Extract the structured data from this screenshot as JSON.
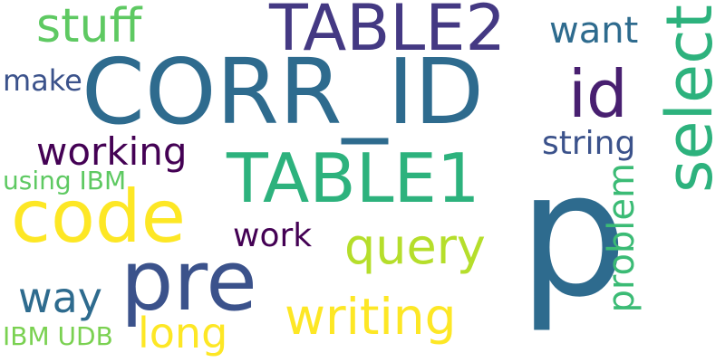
{
  "words": [
    {
      "text": "CORR_ID",
      "color": "#2e6b8e"
    },
    {
      "text": "TABLE2",
      "color": "#443983"
    },
    {
      "text": "TABLE1",
      "color": "#2db27d"
    },
    {
      "text": "p",
      "color": "#2e6b8e"
    },
    {
      "text": "pre",
      "color": "#3b528b"
    },
    {
      "text": "code",
      "color": "#fde725"
    },
    {
      "text": "select",
      "color": "#2db27d"
    },
    {
      "text": "id",
      "color": "#481f70"
    },
    {
      "text": "stuff",
      "color": "#5ec962"
    },
    {
      "text": "want",
      "color": "#2e6b8e"
    },
    {
      "text": "working",
      "color": "#440154"
    },
    {
      "text": "make",
      "color": "#3b528b"
    },
    {
      "text": "string",
      "color": "#3b528b"
    },
    {
      "text": "using IBM",
      "color": "#5ec962"
    },
    {
      "text": "query",
      "color": "#b5de2b"
    },
    {
      "text": "work",
      "color": "#440154"
    },
    {
      "text": "problem",
      "color": "#3bbb75"
    },
    {
      "text": "way",
      "color": "#2e6b8e"
    },
    {
      "text": "writing",
      "color": "#fde725"
    },
    {
      "text": "long",
      "color": "#fde725"
    },
    {
      "text": "IBM UDB",
      "color": "#7ad151"
    }
  ]
}
